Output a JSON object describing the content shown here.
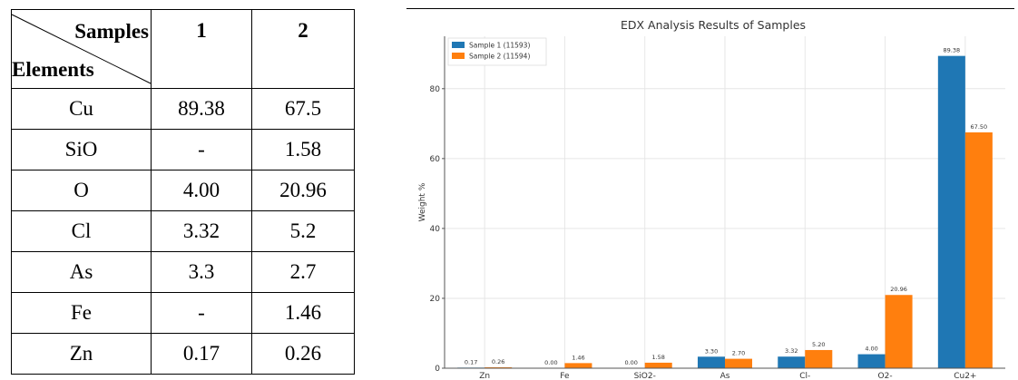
{
  "table": {
    "corner_top": "Samples",
    "corner_bottom": "Elements",
    "col_headers": [
      "1",
      "2"
    ],
    "rows": [
      {
        "element": "Cu",
        "s1": "89.38",
        "s2": "67.5"
      },
      {
        "element": "SiO",
        "s1": "-",
        "s2": "1.58"
      },
      {
        "element": "O",
        "s1": "4.00",
        "s2": "20.96"
      },
      {
        "element": "Cl",
        "s1": "3.32",
        "s2": "5.2"
      },
      {
        "element": "As",
        "s1": "3.3",
        "s2": "2.7"
      },
      {
        "element": "Fe",
        "s1": "-",
        "s2": "1.46"
      },
      {
        "element": "Zn",
        "s1": "0.17",
        "s2": "0.26"
      }
    ]
  },
  "chart_data": {
    "type": "bar",
    "title": "EDX Analysis Results of Samples",
    "xlabel": "",
    "ylabel": "Weight %",
    "categories": [
      "Zn",
      "Fe",
      "SiO2-",
      "As",
      "Cl-",
      "O2-",
      "Cu2+"
    ],
    "series": [
      {
        "name": "Sample 1 (11593)",
        "color": "#1f77b4",
        "values": [
          0.17,
          0.0,
          0.0,
          3.3,
          3.32,
          4.0,
          89.38
        ],
        "labels": [
          "0.17",
          "0.00",
          "0.00",
          "3.30",
          "3.32",
          "4.00",
          "89.38"
        ]
      },
      {
        "name": "Sample 2 (11594)",
        "color": "#ff7f0e",
        "values": [
          0.26,
          1.46,
          1.58,
          2.7,
          5.2,
          20.96,
          67.5
        ],
        "labels": [
          "0.26",
          "1.46",
          "1.58",
          "2.70",
          "5.20",
          "20.96",
          "67.50"
        ]
      }
    ],
    "ylim": [
      0,
      95
    ],
    "yticks": [
      0,
      20,
      40,
      60,
      80
    ],
    "grid": true,
    "legend": "top-left"
  }
}
